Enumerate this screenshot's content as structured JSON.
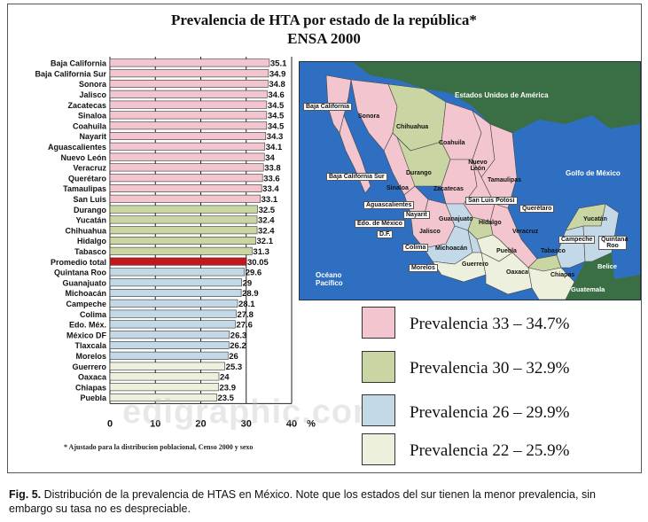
{
  "chart_data": {
    "type": "bar",
    "title": "Prevalencia de HTA por estado de la república*",
    "subtitle": "ENSA 2000",
    "unit_label": "%",
    "xlim": [
      0,
      40
    ],
    "xticks": [
      "0",
      "10",
      "20",
      "30",
      "40"
    ],
    "grid": true,
    "categories": [
      "Baja California",
      "Baja California Sur",
      "Sonora",
      "Jalisco",
      "Zacatecas",
      "Sinaloa",
      "Coahuila",
      "Nayarit",
      "Aguascalientes",
      "Nuevo León",
      "Veracruz",
      "Querétaro",
      "Tamaulipas",
      "San Luis",
      "Durango",
      "Yucatán",
      "Chihuahua",
      "Hidalgo",
      "Tabasco",
      "Promedio total",
      "Quintana Roo",
      "Guanajuato",
      "Michoacán",
      "Campeche",
      "Colima",
      "Edo. Méx.",
      "México DF",
      "Tlaxcala",
      "Morelos",
      "Guerrero",
      "Oaxaca",
      "Chiapas",
      "Puebla"
    ],
    "values": [
      35.1,
      34.9,
      34.8,
      34.6,
      34.5,
      34.5,
      34.5,
      34.3,
      34.1,
      34,
      33.8,
      33.6,
      33.4,
      33.1,
      32.5,
      32.4,
      32.4,
      32.1,
      31.3,
      30.05,
      29.6,
      29,
      28.9,
      28.1,
      27.8,
      27.6,
      26.3,
      26.2,
      26,
      25.3,
      24,
      23.9,
      23.5
    ],
    "value_labels": [
      "35.1",
      "34.9",
      "34.8",
      "34.6",
      "34.5",
      "34.5",
      "34.5",
      "34.3",
      "34.1",
      "34",
      "33.8",
      "33.6",
      "33.4",
      "33.1",
      "32.5",
      "32.4",
      "32.4",
      "32.1",
      "31.3",
      "30.05",
      "29.6",
      "29",
      "28.9",
      "28.1",
      "27.8",
      "27.6",
      "26.3",
      "26.2",
      "26",
      "25.3",
      "24",
      "23.9",
      "23.5"
    ],
    "legend": [
      "Prevalencia 33 – 34.7%",
      "Prevalencia 30 – 32.9%",
      "Prevalencia 26 – 29.9%",
      "Prevalencia 22 – 25.9%"
    ]
  },
  "colors": {
    "group1": "#f3c6cf",
    "group2": "#c9d6a3",
    "group3": "#c3d9e8",
    "group4": "#edf0dc",
    "average": "#c4161c",
    "ocean": "#2f6fc2",
    "usa": "#3a6e45"
  },
  "footnote": "* Ajustado para la distribucion poblacional, Censo 2000 y sexo",
  "caption": {
    "prefix": "Fig. 5.",
    "text": " Distribución de la prevalencia de HTAS en México. Note que los estados del sur tienen la menor prevalencia, sin embargo su tasa no es despreciable."
  },
  "map": {
    "labels": {
      "usa": "Estados Unidos de América",
      "gulf": "Golfo de México",
      "ocean": "Océano Pacífico",
      "belize": "Belice",
      "guatemala": "Guatemala",
      "bc": "Baja California",
      "bcs": "Baja California Sur",
      "sonora": "Sonora",
      "chihuahua": "Chihuahua",
      "coahuila": "Coahuila",
      "nuevo_leon": "Nuevo León",
      "tamaulipas": "Tamaulipas",
      "durango": "Durango",
      "sinaloa": "Sinaloa",
      "zacatecas": "Zacatecas",
      "slp": "San Luis Potosí",
      "aguascalientes": "Aguascalientes",
      "nayarit": "Nayarit",
      "edomex": "Edo. de México",
      "df": "D.F.",
      "jalisco": "Jalisco",
      "guanajuato": "Guanajuato",
      "hidalgo": "Hidalgo",
      "queretaro": "Querétaro",
      "veracruz": "Veracruz",
      "colima": "Colima",
      "michoacan": "Michoacán",
      "morelos": "Morelos",
      "guerrero": "Guerrero",
      "puebla": "Puebla",
      "oaxaca": "Oaxaca",
      "chiapas": "Chiapas",
      "tabasco": "Tabasco",
      "campeche": "Campeche",
      "yucatan": "Yucatán",
      "qroo": "Quintana Roo"
    }
  },
  "watermark": "edigraphic.com"
}
